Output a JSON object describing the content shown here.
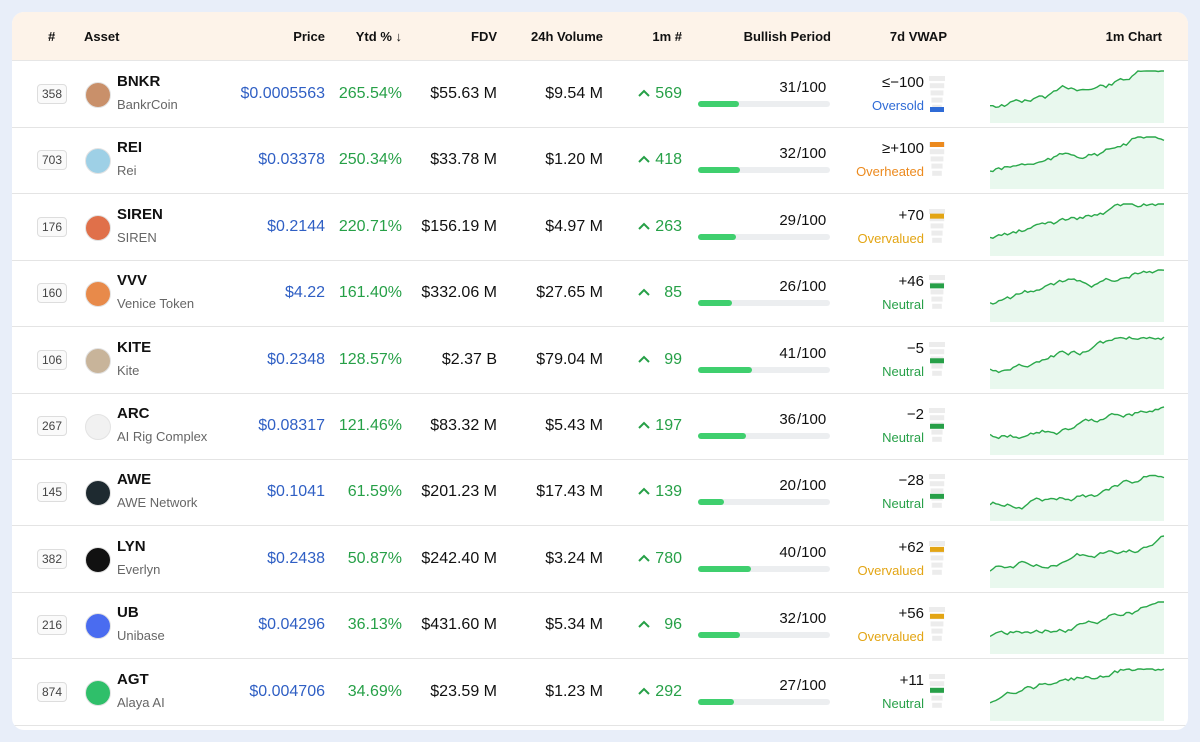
{
  "header": {
    "rank": "#",
    "asset": "Asset",
    "price": "Price",
    "ytd": "Ytd % ↓",
    "fdv": "FDV",
    "volume": "24h Volume",
    "m1": "1m #",
    "bullish": "Bullish Period",
    "vwap": "7d VWAP",
    "chart": "1m Chart"
  },
  "bullish_scale": {
    "value": 100,
    "label": "/100"
  },
  "rows": [
    {
      "rank": 358,
      "symbol": "BNKR",
      "name": "BankrCoin",
      "price": "$0.0005563",
      "ytd": "265.54%",
      "fdv": "$55.63 M",
      "volume": "$9.54 M",
      "m1": 569,
      "bullish": 31,
      "vwap": {
        "value": -100,
        "label": "≤−100"
      },
      "status": "Oversold",
      "status_color": "#2f6bd6",
      "logo_color": "#c9906a"
    },
    {
      "rank": 703,
      "symbol": "REI",
      "name": "Rei",
      "price": "$0.03378",
      "ytd": "250.34%",
      "fdv": "$33.78 M",
      "volume": "$1.20 M",
      "m1": 418,
      "bullish": 32,
      "vwap": {
        "value": 100,
        "label": "≥+100"
      },
      "status": "Overheated",
      "status_color": "#ec8a1e",
      "logo_color": "#9ed0e6"
    },
    {
      "rank": 176,
      "symbol": "SIREN",
      "name": "SIREN",
      "price": "$0.2144",
      "ytd": "220.71%",
      "fdv": "$156.19 M",
      "volume": "$4.97 M",
      "m1": 263,
      "bullish": 29,
      "vwap": {
        "value": 70,
        "label": "+70"
      },
      "status": "Overvalued",
      "status_color": "#e3a514",
      "logo_color": "#e0704a"
    },
    {
      "rank": 160,
      "symbol": "VVV",
      "name": "Venice Token",
      "price": "$4.22",
      "ytd": "161.40%",
      "fdv": "$332.06 M",
      "volume": "$27.65 M",
      "m1": 85,
      "bullish": 26,
      "vwap": {
        "value": 46,
        "label": "+46"
      },
      "status": "Neutral",
      "status_color": "#27a048",
      "logo_color": "#e88a4a"
    },
    {
      "rank": 106,
      "symbol": "KITE",
      "name": "Kite",
      "price": "$0.2348",
      "ytd": "128.57%",
      "fdv": "$2.37 B",
      "volume": "$79.04 M",
      "m1": 99,
      "bullish": 41,
      "vwap": {
        "value": -5,
        "label": "−5"
      },
      "status": "Neutral",
      "status_color": "#27a048",
      "logo_color": "#c8b49a"
    },
    {
      "rank": 267,
      "symbol": "ARC",
      "name": "AI Rig Complex",
      "price": "$0.08317",
      "ytd": "121.46%",
      "fdv": "$83.32 M",
      "volume": "$5.43 M",
      "m1": 197,
      "bullish": 36,
      "vwap": {
        "value": -2,
        "label": "−2"
      },
      "status": "Neutral",
      "status_color": "#27a048",
      "logo_color": "#f1f1f1"
    },
    {
      "rank": 145,
      "symbol": "AWE",
      "name": "AWE Network",
      "price": "$0.1041",
      "ytd": "61.59%",
      "fdv": "$201.23 M",
      "volume": "$17.43 M",
      "m1": 139,
      "bullish": 20,
      "vwap": {
        "value": -28,
        "label": "−28"
      },
      "status": "Neutral",
      "status_color": "#27a048",
      "logo_color": "#1e2a30"
    },
    {
      "rank": 382,
      "symbol": "LYN",
      "name": "Everlyn",
      "price": "$0.2438",
      "ytd": "50.87%",
      "fdv": "$242.40 M",
      "volume": "$3.24 M",
      "m1": 780,
      "bullish": 40,
      "vwap": {
        "value": 62,
        "label": "+62"
      },
      "status": "Overvalued",
      "status_color": "#e3a514",
      "logo_color": "#111111"
    },
    {
      "rank": 216,
      "symbol": "UB",
      "name": "Unibase",
      "price": "$0.04296",
      "ytd": "36.13%",
      "fdv": "$431.60 M",
      "volume": "$5.34 M",
      "m1": 96,
      "bullish": 32,
      "vwap": {
        "value": 56,
        "label": "+56"
      },
      "status": "Overvalued",
      "status_color": "#e3a514",
      "logo_color": "#4a6cf0"
    },
    {
      "rank": 874,
      "symbol": "AGT",
      "name": "Alaya AI",
      "price": "$0.004706",
      "ytd": "34.69%",
      "fdv": "$23.59 M",
      "volume": "$1.23 M",
      "m1": 292,
      "bullish": 27,
      "vwap": {
        "value": 11,
        "label": "+11"
      },
      "status": "Neutral",
      "status_color": "#27a048",
      "logo_color": "#2fbf6a"
    }
  ]
}
